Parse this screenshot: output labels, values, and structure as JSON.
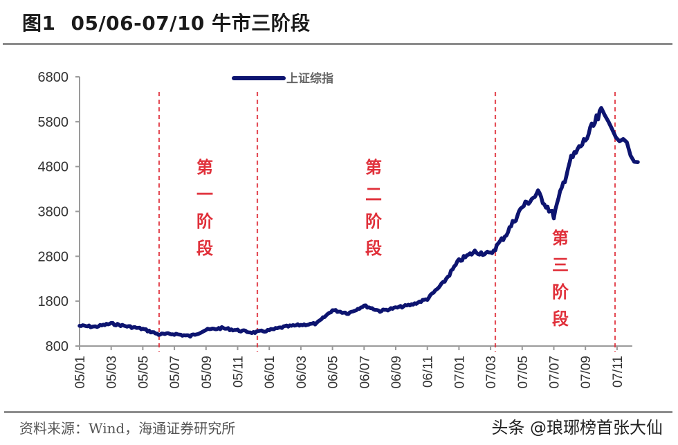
{
  "header": {
    "figure_label": "图1",
    "title": "05/06-07/10 牛市三阶段"
  },
  "footer": {
    "source": "资料来源：Wind，海通证券研究所",
    "watermark": "头条 @琅琊榜首张大仙"
  },
  "colors": {
    "line": "#0d1470",
    "divider": "#e0303a",
    "axis": "#9a9a9a",
    "stage_text": "#e0303a"
  },
  "chart_data": {
    "type": "line",
    "title": "05/06-07/10 牛市三阶段",
    "xlabel": "",
    "ylabel": "",
    "ylim": [
      800,
      6800
    ],
    "yticks": [
      800,
      1800,
      2800,
      3800,
      4800,
      5800,
      6800
    ],
    "xticks": [
      "05/01",
      "05/03",
      "05/05",
      "05/07",
      "05/09",
      "05/11",
      "06/01",
      "06/03",
      "06/05",
      "06/07",
      "06/09",
      "06/11",
      "07/01",
      "07/03",
      "07/05",
      "07/07",
      "07/09",
      "07/11"
    ],
    "legend": [
      "上证综指"
    ],
    "legend_position": "top-center",
    "grid": false,
    "series": [
      {
        "name": "上证综指",
        "x": [
          "05/01",
          "05/02",
          "05/03",
          "05/04",
          "05/05",
          "05/06",
          "05/07",
          "05/08",
          "05/09",
          "05/10",
          "05/11",
          "05/12",
          "06/01",
          "06/02",
          "06/03",
          "06/04",
          "06/05",
          "06/06",
          "06/07",
          "06/08",
          "06/09",
          "06/10",
          "06/11",
          "06/12",
          "07/01",
          "07/02",
          "07/03",
          "07/04",
          "07/05",
          "07/06",
          "07/07",
          "07/08",
          "07/09",
          "07/10",
          "07/11"
        ],
        "values": [
          1250,
          1230,
          1300,
          1240,
          1180,
          1060,
          1070,
          1020,
          1160,
          1200,
          1150,
          1100,
          1150,
          1230,
          1270,
          1300,
          1600,
          1530,
          1700,
          1580,
          1650,
          1720,
          1850,
          2200,
          2700,
          2900,
          2850,
          3300,
          3900,
          4200,
          3700,
          4900,
          5400,
          6000,
          4900
        ]
      }
    ],
    "dividers": [
      {
        "label": "第一阶段起点",
        "x": "05/06"
      },
      {
        "label": "第二阶段起点",
        "x": "05/12"
      },
      {
        "label": "第三阶段起点",
        "x": "07/03"
      },
      {
        "label": "终点",
        "x": "07/10"
      }
    ],
    "annotations": [
      {
        "text": "第一阶段",
        "between": [
          "05/06",
          "05/12"
        ]
      },
      {
        "text": "第二阶段",
        "between": [
          "05/12",
          "07/03"
        ]
      },
      {
        "text": "第三阶段",
        "between": [
          "07/03",
          "07/10"
        ]
      }
    ]
  }
}
